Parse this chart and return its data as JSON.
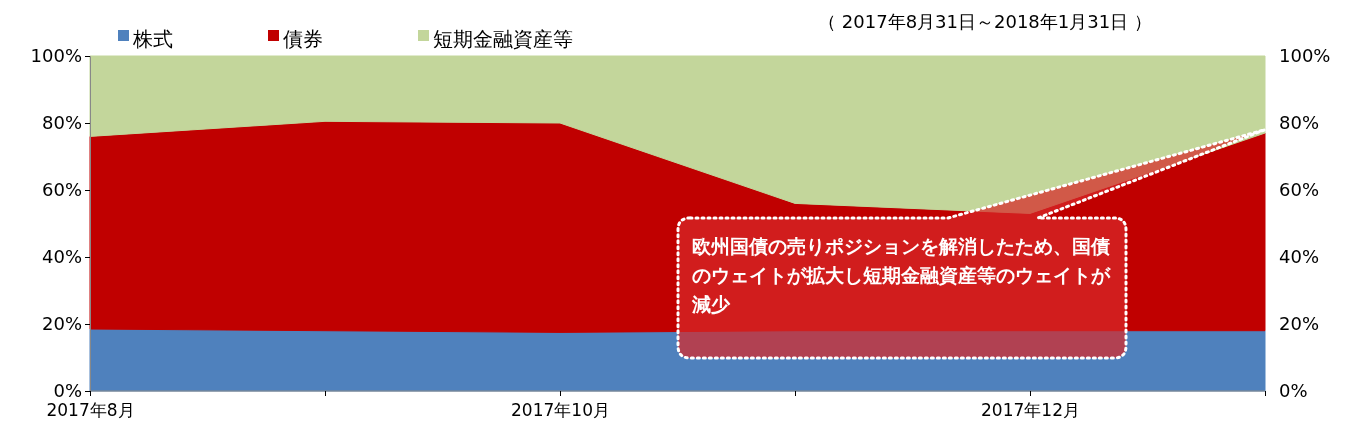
{
  "chart_data": {
    "type": "area",
    "stacked": true,
    "subtitle": "（ 2017年8月31日～2018年1月31日 ）",
    "categories": [
      "2017年8月",
      null,
      "2017年10月",
      null,
      "2017年12月",
      null
    ],
    "series": [
      {
        "name": "株式",
        "color": "#4f81bd",
        "values": [
          18.5,
          18,
          17.5,
          18,
          18,
          18
        ]
      },
      {
        "name": "債券",
        "color": "#c00000",
        "values": [
          57.5,
          62.5,
          62.5,
          38,
          35,
          59
        ]
      },
      {
        "name": "短期金融資産等",
        "color": "#c3d69b",
        "values": [
          24,
          19.5,
          20,
          44,
          47,
          23
        ]
      }
    ],
    "ylim": [
      0,
      100
    ],
    "yticks": [
      {
        "value": 0,
        "label": "0%"
      },
      {
        "value": 20,
        "label": "20%"
      },
      {
        "value": 40,
        "label": "40%"
      },
      {
        "value": 60,
        "label": "60%"
      },
      {
        "value": 80,
        "label": "80%"
      },
      {
        "value": 100,
        "label": "100%"
      }
    ],
    "y2lim": [
      0,
      100
    ],
    "y2ticks": [
      {
        "value": 0,
        "label": "0%"
      },
      {
        "value": 20,
        "label": "20%"
      },
      {
        "value": 40,
        "label": "40%"
      },
      {
        "value": 60,
        "label": "60%"
      },
      {
        "value": 80,
        "label": "80%"
      },
      {
        "value": 100,
        "label": "100%"
      }
    ],
    "annotations": [
      "欧州国債の売りポジションを解消したため、国債のウェイトが拡大し短期金融資産等のウェイトが減少"
    ],
    "legend": "top left",
    "grid": false
  }
}
